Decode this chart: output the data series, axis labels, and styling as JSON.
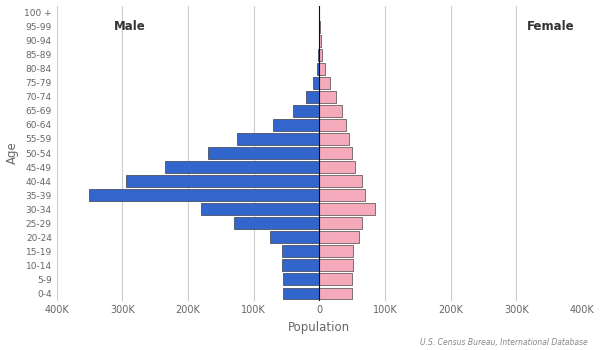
{
  "age_groups": [
    "0-4",
    "5-9",
    "10-14",
    "15-19",
    "20-24",
    "25-29",
    "30-34",
    "35-39",
    "40-44",
    "45-49",
    "50-54",
    "55-59",
    "60-64",
    "65-69",
    "70-74",
    "75-79",
    "80-84",
    "85-89",
    "90-94",
    "95-99",
    "100 +"
  ],
  "male": [
    55000,
    55000,
    57000,
    57000,
    75000,
    130000,
    180000,
    350000,
    295000,
    235000,
    170000,
    125000,
    70000,
    40000,
    20000,
    10000,
    4000,
    1500,
    500,
    100,
    20
  ],
  "female": [
    50000,
    50000,
    52000,
    52000,
    60000,
    65000,
    85000,
    70000,
    65000,
    55000,
    50000,
    45000,
    40000,
    35000,
    25000,
    17000,
    9000,
    4500,
    1800,
    500,
    80
  ],
  "male_color": "#3366CC",
  "female_color": "#F4AABB",
  "bar_edgecolor": "#222222",
  "bar_linewidth": 0.4,
  "xlabel": "Population",
  "ylabel": "Age",
  "male_label": "Male",
  "female_label": "Female",
  "source_text": "U.S. Census Bureau, International Database",
  "xlim": 400000,
  "background_color": "#FFFFFF",
  "gridcolor": "#CCCCCC",
  "tick_label_color": "#666666",
  "vertical_line_color": "#111111"
}
